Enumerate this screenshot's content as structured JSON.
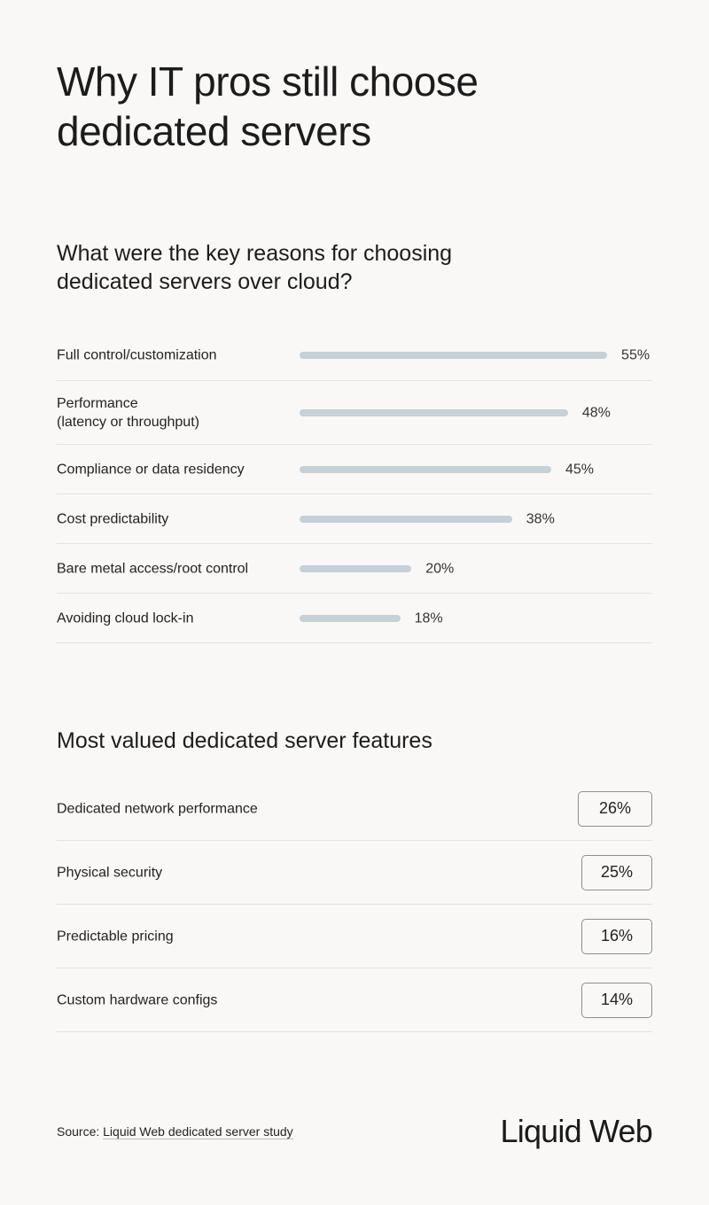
{
  "title": "Why IT pros still choose dedicated servers",
  "chart_data": [
    {
      "type": "bar",
      "orientation": "horizontal",
      "title": "What were the key reasons for choosing dedicated servers over cloud?",
      "categories": [
        "Full control/customization",
        "Performance\n(latency or throughput)",
        "Compliance or data residency",
        "Cost predictability",
        "Bare metal access/root control",
        "Avoiding cloud lock-in"
      ],
      "values": [
        55,
        48,
        45,
        38,
        20,
        18
      ],
      "labels": [
        "55%",
        "48%",
        "45%",
        "38%",
        "20%",
        "18%"
      ],
      "unit": "%",
      "bar_color": "#c5d0d7"
    },
    {
      "type": "table",
      "title": "Most valued dedicated server features",
      "categories": [
        "Dedicated network performance",
        "Physical security",
        "Predictable pricing",
        "Custom hardware configs"
      ],
      "values": [
        26,
        25,
        16,
        14
      ],
      "labels": [
        "26%",
        "25%",
        "16%",
        "14%"
      ]
    }
  ],
  "footer": {
    "source_prefix": "Source: ",
    "source_link": "Liquid Web dedicated server study",
    "logo": "Liquid Web"
  },
  "colors": {
    "background": "#f9f8f6",
    "bar": "#c5d0d7",
    "text": "#1c1c1c"
  }
}
